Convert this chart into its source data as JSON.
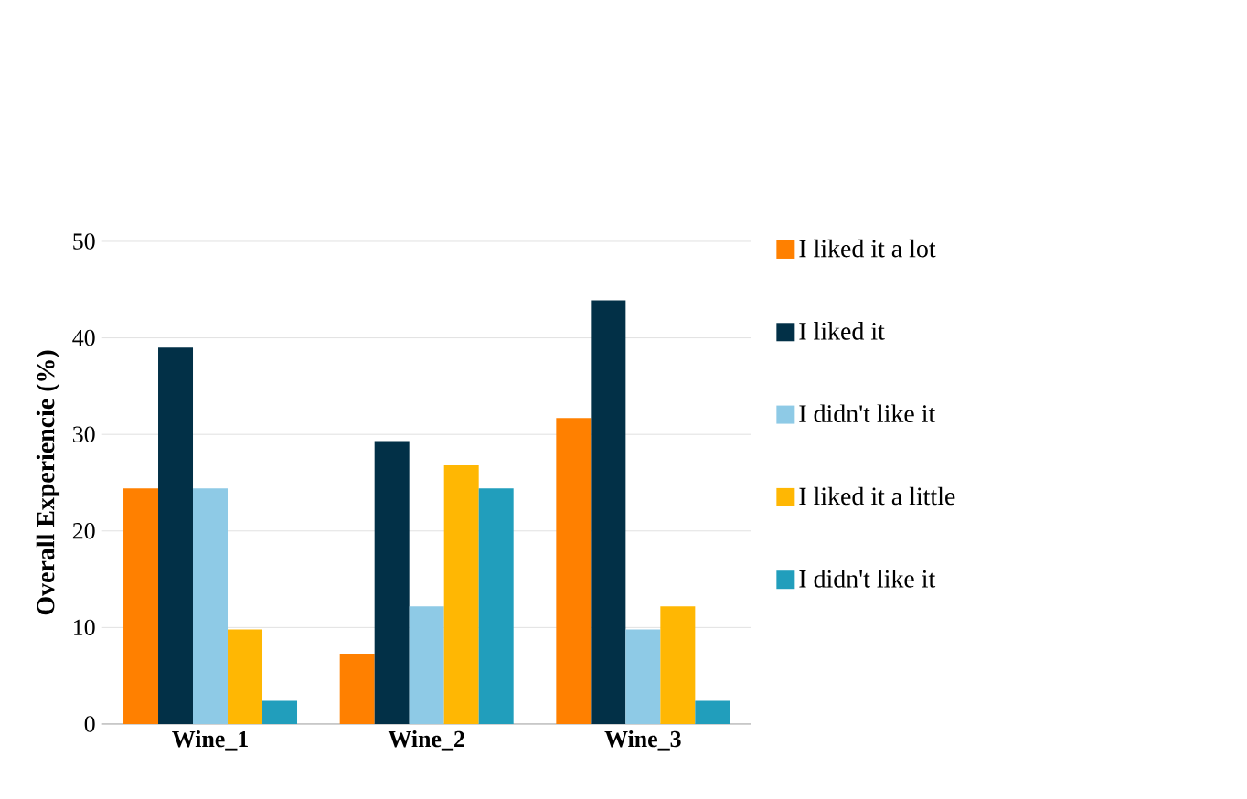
{
  "chart_data": {
    "type": "bar",
    "ylabel": "Overall Experiencie  (%)",
    "categories": [
      "Wine_1",
      "Wine_2",
      "Wine_3"
    ],
    "series": [
      {
        "name": "I liked it a lot",
        "color": "#ff8000",
        "values": [
          24.4,
          7.3,
          31.7
        ]
      },
      {
        "name": "I liked it",
        "color": "#023047",
        "values": [
          39.0,
          29.3,
          43.9
        ]
      },
      {
        "name": "I didn't like it",
        "color": "#8ecae6",
        "values": [
          24.4,
          12.2,
          9.8
        ]
      },
      {
        "name": "I liked it a little",
        "color": "#ffb703",
        "values": [
          9.8,
          26.8,
          12.2
        ]
      },
      {
        "name": "I didn't like it",
        "color": "#219ebc",
        "values": [
          2.4,
          24.4,
          2.4
        ]
      }
    ],
    "ylim": [
      0,
      50
    ],
    "yticks": [
      0,
      10,
      20,
      30,
      40,
      50
    ],
    "grid": "y",
    "legend": "right"
  }
}
